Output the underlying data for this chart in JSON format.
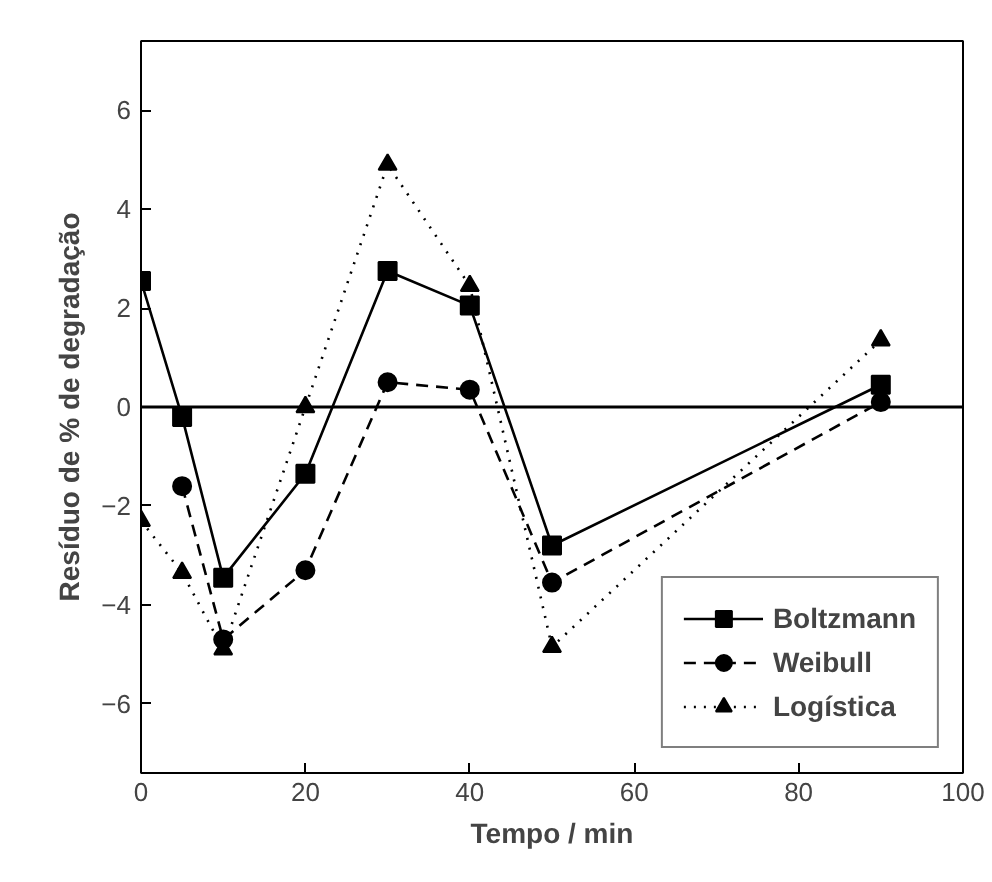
{
  "chart_data": {
    "type": "line",
    "xlabel": "Tempo / min",
    "ylabel": "Resíduo de % de degradação",
    "xlim": [
      0,
      100
    ],
    "xticks": [
      0,
      20,
      40,
      60,
      80,
      100
    ],
    "ylim": [
      -7.4,
      7.4
    ],
    "yticks": [
      -6,
      -4,
      -2,
      0,
      2,
      4,
      6
    ],
    "grid": false,
    "legend": "bottom right",
    "ref_lines": [
      {
        "axis": "y",
        "value": 0,
        "color": "#000000",
        "line_style": "solid"
      }
    ],
    "series": [
      {
        "name": "Boltzmann",
        "color": "#000000",
        "marker": "square",
        "line_style": "solid",
        "x": [
          0,
          5,
          10,
          20,
          30,
          40,
          50,
          90
        ],
        "values": [
          2.55,
          -0.2,
          -3.45,
          -1.35,
          2.75,
          2.05,
          -2.8,
          0.45
        ]
      },
      {
        "name": "Weibull",
        "color": "#000000",
        "marker": "circle",
        "line_style": "dashed",
        "x": [
          5,
          10,
          20,
          30,
          40,
          50,
          90
        ],
        "values": [
          -1.6,
          -4.7,
          -3.3,
          0.5,
          0.35,
          -3.55,
          0.1
        ]
      },
      {
        "name": "Logística",
        "color": "#000000",
        "marker": "triangle",
        "line_style": "dotted",
        "x": [
          0,
          5,
          10,
          20,
          30,
          40,
          50,
          90
        ],
        "values": [
          -2.3,
          -3.35,
          -4.9,
          0.0,
          4.9,
          2.45,
          -4.85,
          1.35
        ]
      }
    ]
  }
}
